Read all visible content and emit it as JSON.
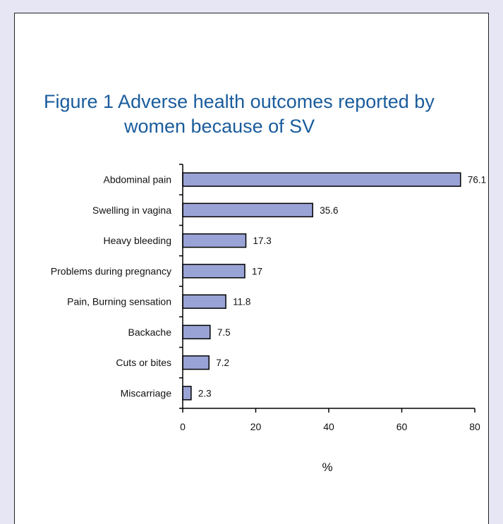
{
  "chart_data": {
    "type": "bar",
    "orientation": "horizontal",
    "title_line1": "Figure 1  Adverse health outcomes reported by",
    "title_line2": "women because of SV",
    "xlabel": "%",
    "ylabel": "",
    "xlim": [
      0,
      80
    ],
    "xticks": [
      0,
      20,
      40,
      60,
      80
    ],
    "grid": false,
    "categories": [
      "Abdominal pain",
      "Swelling in vagina",
      "Heavy bleeding",
      "Problems during pregnancy",
      "Pain, Burning sensation",
      "Backache",
      "Cuts or bites",
      "Miscarriage"
    ],
    "values": [
      76.1,
      35.6,
      17.3,
      17,
      11.8,
      7.5,
      7.2,
      2.3
    ],
    "bar_color": "#9aa3d6",
    "bar_edge_color": "#000000",
    "title_color": "#1a5c9c"
  }
}
